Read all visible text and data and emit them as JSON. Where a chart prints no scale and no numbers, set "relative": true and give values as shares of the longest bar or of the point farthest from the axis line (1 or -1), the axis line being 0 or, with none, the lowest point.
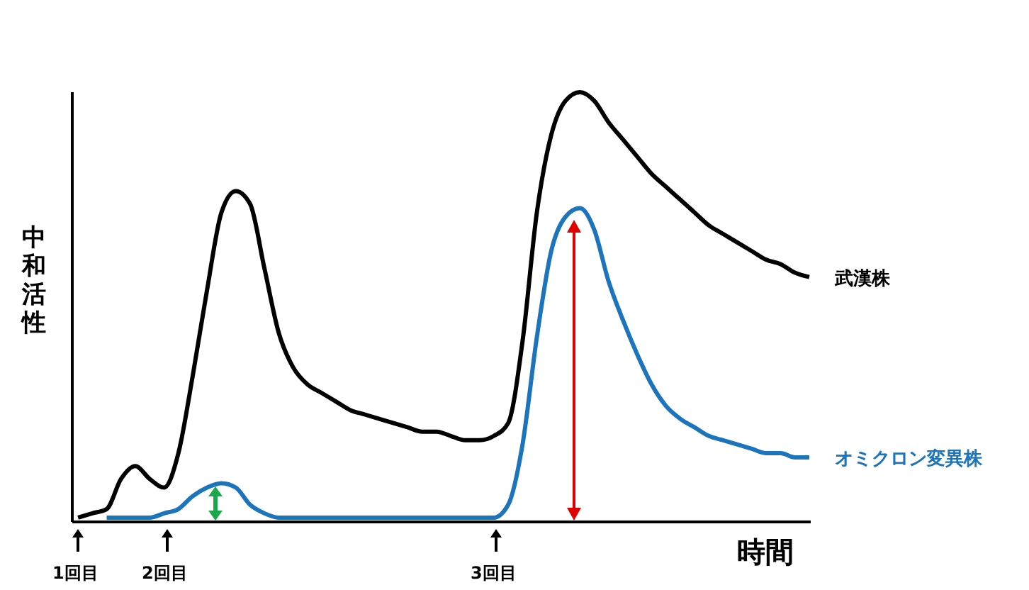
{
  "chart_data": {
    "type": "line",
    "relative": true,
    "xlabel": "時間",
    "ylabel": "中和活性",
    "legend": false,
    "grid": false,
    "marker": "none",
    "line_style": "solid",
    "categories": [
      null,
      null,
      null,
      null,
      null,
      null,
      null,
      null,
      null,
      null,
      null,
      null,
      null,
      null,
      null,
      null,
      null,
      null,
      null,
      null,
      null,
      null,
      null,
      null,
      null,
      null,
      null,
      null,
      null,
      null,
      null,
      null,
      null,
      null,
      null,
      null,
      null,
      null,
      null,
      null,
      null,
      null,
      null,
      null,
      null,
      null,
      null,
      null,
      null,
      null,
      null,
      null
    ],
    "series": [
      {
        "name": "武漢株",
        "color": "#000000",
        "values": [
          0.01,
          0.02,
          0.03,
          0.1,
          0.13,
          0.1,
          0.08,
          0.16,
          0.34,
          0.54,
          0.72,
          0.77,
          0.74,
          0.59,
          0.44,
          0.36,
          0.32,
          0.3,
          0.28,
          0.26,
          0.25,
          0.24,
          0.23,
          0.22,
          0.21,
          0.21,
          0.2,
          0.19,
          0.19,
          0.2,
          0.23,
          0.42,
          0.72,
          0.9,
          0.98,
          1.0,
          0.98,
          0.93,
          0.89,
          0.85,
          0.81,
          0.78,
          0.75,
          0.72,
          0.69,
          0.67,
          0.65,
          0.63,
          0.61,
          0.6,
          0.58,
          0.57
        ]
      },
      {
        "name": "オミクロン変異株",
        "color": "#1c75bc",
        "values": [
          null,
          null,
          0.01,
          0.01,
          0.01,
          0.01,
          0.02,
          0.03,
          0.06,
          0.08,
          0.09,
          0.08,
          0.04,
          0.02,
          0.01,
          0.01,
          0.01,
          0.01,
          0.01,
          0.01,
          0.01,
          0.01,
          0.01,
          0.01,
          0.01,
          0.01,
          0.01,
          0.01,
          0.01,
          0.01,
          0.04,
          0.18,
          0.43,
          0.63,
          0.71,
          0.73,
          0.68,
          0.56,
          0.47,
          0.39,
          0.32,
          0.27,
          0.24,
          0.22,
          0.2,
          0.19,
          0.18,
          0.17,
          0.16,
          0.16,
          0.15,
          0.15
        ]
      }
    ],
    "annotations": [
      "1回目",
      "2回目",
      "3回目"
    ]
  }
}
